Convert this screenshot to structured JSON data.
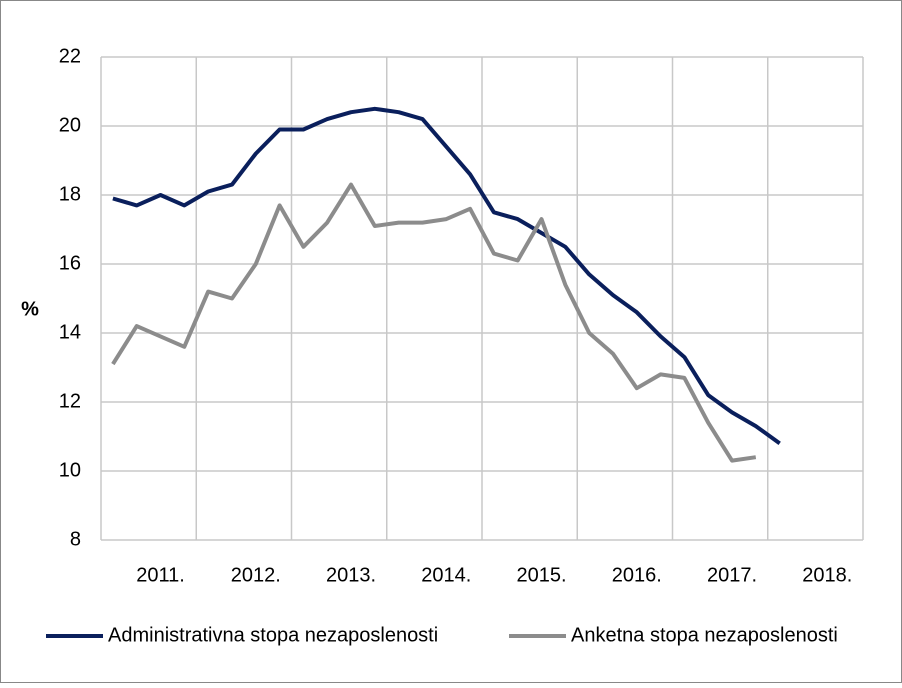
{
  "chart_data": {
    "type": "line",
    "y_label": "%",
    "categories": [
      null,
      null,
      "2011.",
      null,
      null,
      null,
      "2012.",
      null,
      null,
      null,
      "2013.",
      null,
      null,
      null,
      "2014.",
      null,
      null,
      null,
      "2015.",
      null,
      null,
      null,
      "2016.",
      null,
      null,
      null,
      "2017.",
      null,
      null,
      null,
      "2018.",
      null
    ],
    "series": [
      {
        "name": "Administrativna stopa nezaposlenosti",
        "color": "#0a1f5c",
        "values": [
          17.9,
          17.7,
          18.0,
          17.7,
          18.1,
          18.3,
          19.2,
          19.9,
          19.9,
          20.2,
          20.4,
          20.5,
          20.4,
          20.2,
          19.4,
          18.6,
          17.5,
          17.3,
          16.9,
          16.5,
          15.7,
          15.1,
          14.6,
          13.9,
          13.3,
          12.2,
          11.7,
          11.3,
          10.8,
          null,
          null,
          null
        ]
      },
      {
        "name": "Anketna stopa nezaposlenosti",
        "color": "#8c8c8c",
        "values": [
          13.1,
          14.2,
          13.9,
          13.6,
          15.2,
          15.0,
          16.0,
          17.7,
          16.5,
          17.2,
          18.3,
          17.1,
          17.2,
          17.2,
          17.3,
          17.6,
          16.3,
          16.1,
          17.3,
          15.4,
          14.0,
          13.4,
          12.4,
          12.8,
          12.7,
          11.4,
          10.3,
          10.4,
          null,
          null,
          null,
          null
        ]
      }
    ],
    "ylim": [
      8,
      22
    ],
    "yticks": [
      8,
      10,
      12,
      14,
      16,
      18,
      20,
      22
    ],
    "grid": true,
    "legend": "bottom"
  }
}
